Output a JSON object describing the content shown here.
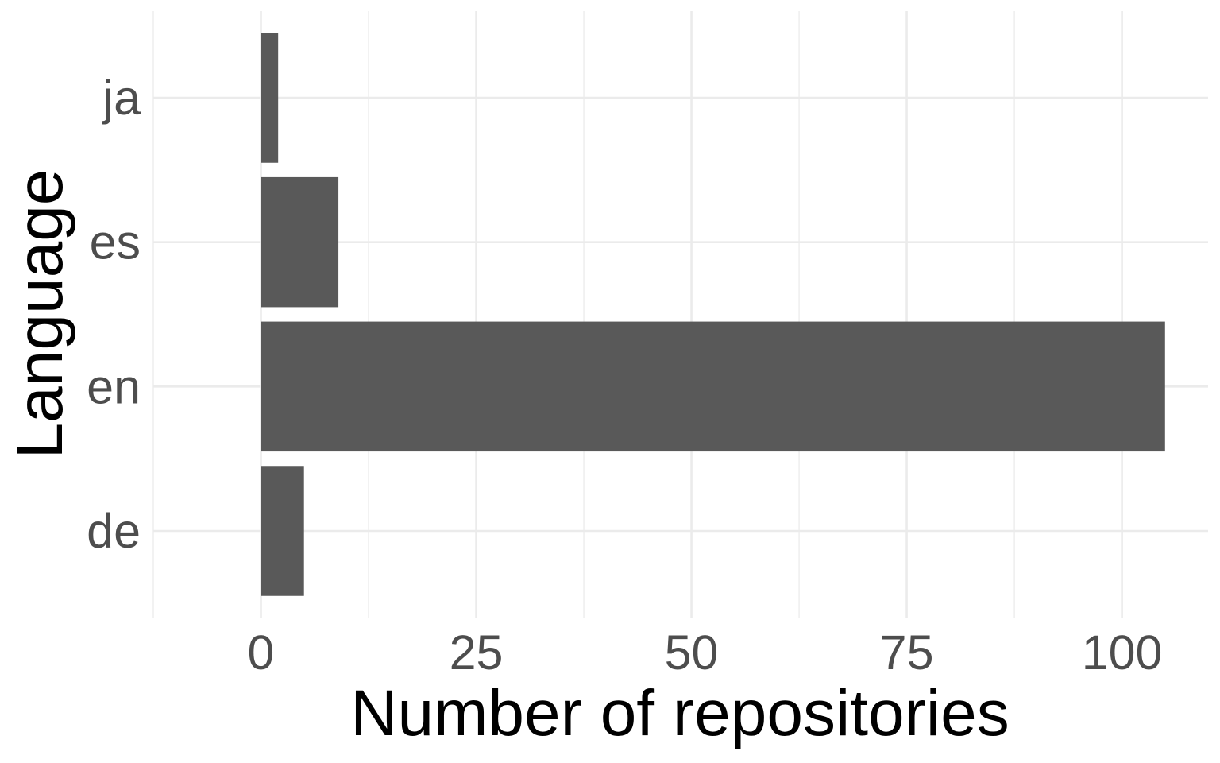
{
  "chart_data": {
    "type": "bar",
    "orientation": "horizontal",
    "categories": [
      "de",
      "en",
      "es",
      "ja"
    ],
    "values": [
      5,
      105,
      9,
      2
    ],
    "xlabel": "Number of repositories",
    "ylabel": "Language",
    "xlim": [
      -12.5,
      110
    ],
    "xticks": [
      0,
      25,
      50,
      75,
      100
    ],
    "grid": true,
    "legend": "none",
    "bar_color": "#595959",
    "grid_color": "#ebebeb"
  }
}
